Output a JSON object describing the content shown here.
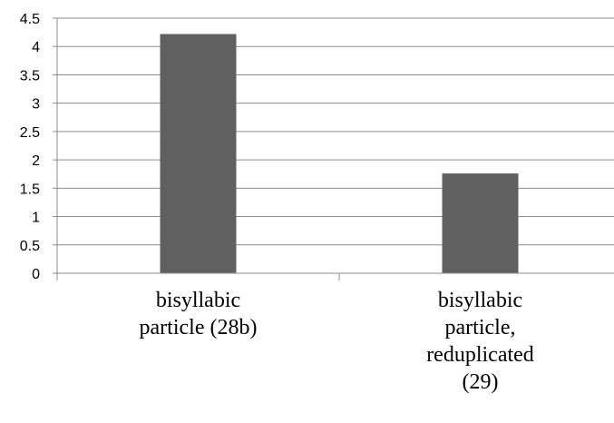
{
  "chart_data": {
    "type": "bar",
    "title": "",
    "xlabel": "",
    "ylabel": "",
    "categories": [
      [
        "bisyllabic",
        "particle (28b)"
      ],
      [
        "bisyllabic",
        "particle,",
        "reduplicated",
        "(29)"
      ]
    ],
    "values": [
      4.22,
      1.76
    ],
    "ylim": [
      0,
      4.5
    ],
    "yticks": [
      "0",
      "0.5",
      "1",
      "1.5",
      "2",
      "2.5",
      "3",
      "3.5",
      "4",
      "4.5"
    ],
    "grid": true,
    "legend": "none",
    "bar_color": "#606060",
    "grid_color": "#8c8c8c",
    "axis_color": "#8c8c8c"
  }
}
